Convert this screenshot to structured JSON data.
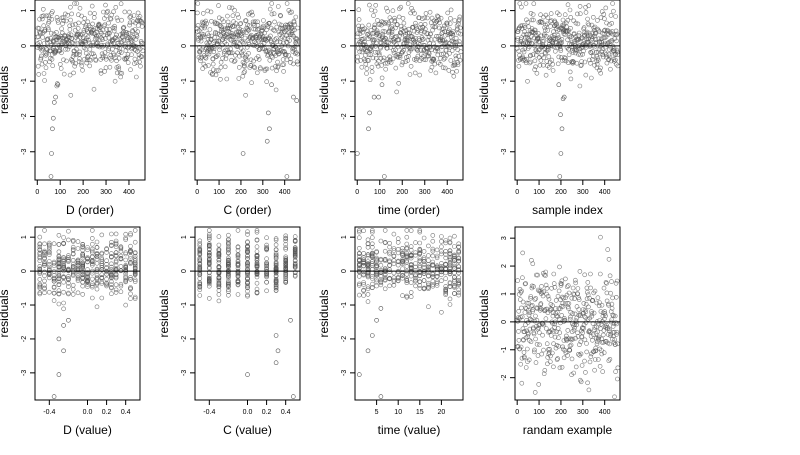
{
  "figure": {
    "background": "#ffffff",
    "point_color": "#555555",
    "reference_line_color": "#000000"
  },
  "chart_data": [
    {
      "type": "scatter",
      "xlabel": "D (order)",
      "ylabel": "residuals",
      "xlim": [
        -10,
        470
      ],
      "ylim": [
        -3.8,
        1.3
      ],
      "xticks": [
        0,
        100,
        200,
        300,
        400
      ],
      "xtick_labels": [
        "0",
        "100",
        "200",
        "300",
        "400"
      ],
      "yticks": [
        1,
        0,
        -1,
        -2,
        -3
      ],
      "ytick_labels": [
        "1",
        "0",
        "-1",
        "-2",
        "-3"
      ],
      "reference_line_y": 0,
      "n_points": 460,
      "x_range": [
        0,
        460
      ],
      "residual_spread": 0.45,
      "outliers": [
        {
          "x": 60,
          "y": -3.7
        },
        {
          "x": 62,
          "y": -3.05
        },
        {
          "x": 66,
          "y": -2.35
        },
        {
          "x": 70,
          "y": -2.05
        },
        {
          "x": 74,
          "y": -1.6
        },
        {
          "x": 80,
          "y": -1.45
        },
        {
          "x": 90,
          "y": -1.1
        }
      ]
    },
    {
      "type": "scatter",
      "xlabel": "C (order)",
      "ylabel": "residuals",
      "xlim": [
        -10,
        470
      ],
      "ylim": [
        -3.8,
        1.3
      ],
      "xticks": [
        0,
        100,
        200,
        300,
        400
      ],
      "xtick_labels": [
        "0",
        "100",
        "200",
        "300",
        "400"
      ],
      "yticks": [
        1,
        0,
        -1,
        -2,
        -3
      ],
      "ytick_labels": [
        "1",
        "0",
        "-1",
        "-2",
        "-3"
      ],
      "reference_line_y": 0,
      "n_points": 460,
      "x_range": [
        0,
        460
      ],
      "residual_spread": 0.45,
      "outliers": [
        {
          "x": 210,
          "y": -3.05
        },
        {
          "x": 320,
          "y": -2.7
        },
        {
          "x": 330,
          "y": -2.35
        },
        {
          "x": 325,
          "y": -1.9
        },
        {
          "x": 340,
          "y": -1.1
        },
        {
          "x": 440,
          "y": -1.45
        },
        {
          "x": 455,
          "y": -1.55
        },
        {
          "x": 410,
          "y": -3.7
        }
      ]
    },
    {
      "type": "scatter",
      "xlabel": "time (order)",
      "ylabel": "residuals",
      "xlim": [
        -10,
        470
      ],
      "ylim": [
        -3.8,
        1.3
      ],
      "xticks": [
        0,
        100,
        200,
        300,
        400
      ],
      "xtick_labels": [
        "0",
        "100",
        "200",
        "300",
        "400"
      ],
      "yticks": [
        1,
        0,
        -1,
        -2,
        -3
      ],
      "ytick_labels": [
        "1",
        "0",
        "-1",
        "-2",
        "-3"
      ],
      "reference_line_y": 0,
      "n_points": 460,
      "x_range": [
        0,
        460
      ],
      "residual_spread": 0.45,
      "outliers": [
        {
          "x": 0,
          "y": -3.05
        },
        {
          "x": 50,
          "y": -2.35
        },
        {
          "x": 55,
          "y": -1.9
        },
        {
          "x": 95,
          "y": -1.45
        },
        {
          "x": 75,
          "y": -1.45
        },
        {
          "x": 110,
          "y": -1.1
        },
        {
          "x": 120,
          "y": -3.7
        }
      ]
    },
    {
      "type": "scatter",
      "xlabel": "sample index",
      "ylabel": "residuals",
      "xlim": [
        -10,
        470
      ],
      "ylim": [
        -3.8,
        1.3
      ],
      "xticks": [
        0,
        100,
        200,
        300,
        400
      ],
      "xtick_labels": [
        "0",
        "100",
        "200",
        "300",
        "400"
      ],
      "yticks": [
        1,
        0,
        -1,
        -2,
        -3
      ],
      "ytick_labels": [
        "1",
        "0",
        "-1",
        "-2",
        "-3"
      ],
      "reference_line_y": 0,
      "n_points": 460,
      "x_range": [
        0,
        460
      ],
      "residual_spread": 0.45,
      "outliers": [
        {
          "x": 195,
          "y": -3.7
        },
        {
          "x": 200,
          "y": -3.05
        },
        {
          "x": 205,
          "y": -2.35
        },
        {
          "x": 198,
          "y": -1.95
        },
        {
          "x": 210,
          "y": -1.5
        },
        {
          "x": 215,
          "y": -1.45
        },
        {
          "x": 190,
          "y": -1.1
        }
      ]
    },
    {
      "type": "scatter",
      "xlabel": "D (value)",
      "ylabel": "residuals",
      "xlim": [
        -0.55,
        0.55
      ],
      "ylim": [
        -3.8,
        1.3
      ],
      "xticks": [
        -0.4,
        0.0,
        0.2,
        0.4
      ],
      "xtick_labels": [
        "-0.4",
        "0.0",
        "0.2",
        "0.4"
      ],
      "yticks": [
        1,
        0,
        -1,
        -2,
        -3
      ],
      "ytick_labels": [
        "1",
        "0",
        "-1",
        "-2",
        "-3"
      ],
      "reference_line_y": 0,
      "n_points": 460,
      "x_range": [
        -0.5,
        0.5
      ],
      "x_levels": [
        -0.5,
        -0.45,
        -0.4,
        -0.35,
        -0.3,
        -0.25,
        -0.2,
        -0.15,
        -0.1,
        -0.05,
        0.0,
        0.05,
        0.1,
        0.15,
        0.2,
        0.25,
        0.3,
        0.35,
        0.4,
        0.45,
        0.5
      ],
      "residual_spread": 0.45,
      "outliers": [
        {
          "x": -0.35,
          "y": -3.7
        },
        {
          "x": -0.3,
          "y": -3.05
        },
        {
          "x": -0.25,
          "y": -2.35
        },
        {
          "x": -0.3,
          "y": -2.0
        },
        {
          "x": -0.2,
          "y": -1.45
        },
        {
          "x": -0.25,
          "y": -1.6
        }
      ]
    },
    {
      "type": "scatter",
      "xlabel": "C (value)",
      "ylabel": "residuals",
      "xlim": [
        -0.55,
        0.55
      ],
      "ylim": [
        -3.8,
        1.3
      ],
      "xticks": [
        -0.4,
        0.0,
        0.2,
        0.4
      ],
      "xtick_labels": [
        "-0.4",
        "0.0",
        "0.2",
        "0.4"
      ],
      "yticks": [
        1,
        0,
        -1,
        -2,
        -3
      ],
      "ytick_labels": [
        "1",
        "0",
        "-1",
        "-2",
        "-3"
      ],
      "reference_line_y": 0,
      "n_points": 460,
      "x_range": [
        -0.5,
        0.5
      ],
      "x_levels": [
        -0.5,
        -0.4,
        -0.3,
        -0.2,
        -0.1,
        0.0,
        0.1,
        0.2,
        0.3,
        0.4,
        0.5
      ],
      "residual_spread": 0.45,
      "outliers": [
        {
          "x": 0.0,
          "y": -3.05
        },
        {
          "x": 0.3,
          "y": -2.7
        },
        {
          "x": 0.32,
          "y": -2.35
        },
        {
          "x": 0.3,
          "y": -1.9
        },
        {
          "x": 0.45,
          "y": -1.45
        },
        {
          "x": 0.48,
          "y": -3.7
        }
      ]
    },
    {
      "type": "scatter",
      "xlabel": "time (value)",
      "ylabel": "residuals",
      "xlim": [
        0,
        25
      ],
      "ylim": [
        -3.8,
        1.3
      ],
      "xticks": [
        5,
        10,
        15,
        20
      ],
      "xtick_labels": [
        "5",
        "10",
        "15",
        "20"
      ],
      "yticks": [
        1,
        0,
        -1,
        -2,
        -3
      ],
      "ytick_labels": [
        "1",
        "0",
        "-1",
        "-2",
        "-3"
      ],
      "reference_line_y": 0,
      "n_points": 460,
      "x_range": [
        1,
        24
      ],
      "x_levels": [
        1,
        2,
        3,
        4,
        5,
        6,
        7,
        8,
        9,
        10,
        11,
        12,
        13,
        14,
        15,
        16,
        17,
        18,
        19,
        20,
        21,
        22,
        23,
        24
      ],
      "residual_spread": 0.45,
      "outliers": [
        {
          "x": 1,
          "y": -3.05
        },
        {
          "x": 3,
          "y": -2.35
        },
        {
          "x": 4,
          "y": -1.9
        },
        {
          "x": 5,
          "y": -1.45
        },
        {
          "x": 6,
          "y": -3.7
        },
        {
          "x": 6,
          "y": -1.1
        }
      ]
    },
    {
      "type": "scatter",
      "xlabel": "randam example",
      "ylabel": "residuals",
      "xlim": [
        -10,
        470
      ],
      "ylim": [
        -2.8,
        3.4
      ],
      "xticks": [
        0,
        100,
        200,
        300,
        400
      ],
      "xtick_labels": [
        "0",
        "100",
        "200",
        "300",
        "400"
      ],
      "yticks": [
        3,
        2,
        1,
        0,
        -1,
        -2
      ],
      "ytick_labels": [
        "3",
        "2",
        "1",
        "0",
        "-1",
        "-2"
      ],
      "reference_line_y": 0,
      "n_points": 460,
      "x_range": [
        0,
        460
      ],
      "residual_spread": 1.0,
      "outliers": []
    }
  ]
}
